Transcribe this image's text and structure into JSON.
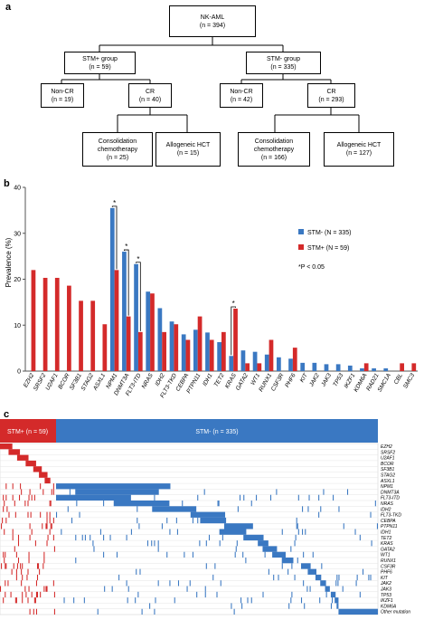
{
  "panel_a": {
    "letter": "a",
    "root": {
      "label": "NK-AML",
      "n": "(n = 394)"
    },
    "stm_pos": {
      "label": "STM+ group",
      "n": "(n = 59)"
    },
    "stm_neg": {
      "label": "STM- group",
      "n": "(n = 335)"
    },
    "pos_noncr": {
      "label": "Non-CR",
      "n": "(n = 19)"
    },
    "pos_cr": {
      "label": "CR",
      "n": "(n = 40)"
    },
    "neg_noncr": {
      "label": "Non-CR",
      "n": "(n = 42)"
    },
    "neg_cr": {
      "label": "CR",
      "n": "(n = 293)"
    },
    "pos_consol": {
      "label1": "Consolidation",
      "label2": "chemotherapy",
      "n": "(n = 25)"
    },
    "pos_hct": {
      "label": "Allogeneic HCT",
      "n": "(n = 15)"
    },
    "neg_consol": {
      "label1": "Consolidation",
      "label2": "chemotherapy",
      "n": "(n = 166)"
    },
    "neg_hct": {
      "label": "Allogeneic HCT",
      "n": "(n = 127)"
    }
  },
  "panel_b": {
    "letter": "b",
    "legend": {
      "stm_neg": "STM- (N = 335)",
      "stm_pos": "STM+ (N = 59)",
      "pnote": "*P < 0.05"
    },
    "colors": {
      "stm_neg": "#3a78c2",
      "stm_pos": "#d42a2a"
    }
  },
  "chart_data": {
    "type": "bar",
    "ylabel": "Prevalence (%)",
    "ylim": [
      0,
      40
    ],
    "yticks": [
      0,
      10,
      20,
      30,
      40
    ],
    "categories": [
      "EZH2",
      "SRSF2",
      "U2AF1",
      "BCOR",
      "SF3B1",
      "STAG2",
      "ASXL1",
      "NPM1",
      "DNMT3A",
      "FLT3-ITD",
      "NRAS",
      "IDH2",
      "FLT3-TKD",
      "CEBPA",
      "PTPN11",
      "IDH1",
      "TET2",
      "KRAS",
      "GATA2",
      "WT1",
      "RUNX1",
      "CSF3R",
      "PHF6",
      "KIT",
      "JAK2",
      "JAK3",
      "TP53",
      "IKZF1",
      "KDM6A",
      "RAD21",
      "SMC1A",
      "CBL",
      "SMC3"
    ],
    "series": [
      {
        "name": "STM- (N = 335)",
        "values": [
          0,
          0,
          0,
          0,
          0,
          0,
          0,
          35.5,
          26,
          23.3,
          17.3,
          13.7,
          10.8,
          8,
          9,
          8.4,
          6.3,
          3.3,
          4.5,
          4.2,
          3.6,
          3,
          2.7,
          1.8,
          1.8,
          1.5,
          1.5,
          1.2,
          0.6,
          0.6,
          0.6,
          0,
          0
        ]
      },
      {
        "name": "STM+ (N = 59)",
        "values": [
          22,
          20.3,
          20.3,
          18.6,
          15.3,
          15.3,
          10.2,
          22,
          11.9,
          8.5,
          16.9,
          8.5,
          10.2,
          6.8,
          11.9,
          6.8,
          8.5,
          13.6,
          1.7,
          1.7,
          6.8,
          0,
          5.1,
          0,
          0,
          0,
          0,
          0,
          1.7,
          0,
          0,
          1.7,
          1.7
        ]
      }
    ],
    "significance": [
      {
        "category": "NPM1",
        "label": "*"
      },
      {
        "category": "DNMT3A",
        "label": "*"
      },
      {
        "category": "FLT3-ITD",
        "label": "*"
      },
      {
        "category": "KRAS",
        "label": "*"
      }
    ]
  },
  "panel_c": {
    "letter": "c",
    "header_pos": "STM+ (n = 59)",
    "header_neg": "STM- (n = 335)",
    "row_labels": [
      "EZH2",
      "SRSF2",
      "U2AF1",
      "BCOR",
      "SF3B1",
      "STAG2",
      "ASXL1",
      "NPM1",
      "DNMT3A",
      "FLT3-ITD",
      "NRAS",
      "IDH2",
      "FLT3-TKD",
      "CEBPA",
      "PTPN11",
      "IDH1",
      "TET2",
      "KRAS",
      "GATA2",
      "WT1",
      "RUNX1",
      "CSF3R",
      "PHF6",
      "KIT",
      "JAK2",
      "JAK3",
      "TP53",
      "IKZF1",
      "KDM6A",
      "Other mutation"
    ]
  }
}
